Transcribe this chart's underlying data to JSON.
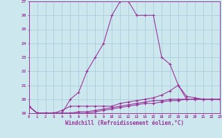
{
  "xlabel": "Windchill (Refroidissement éolien,°C)",
  "bg_color": "#cce8ee",
  "line_color": "#993399",
  "grid_color": "#aaccdd",
  "hours": [
    0,
    1,
    2,
    3,
    4,
    5,
    6,
    7,
    8,
    9,
    10,
    11,
    12,
    13,
    14,
    15,
    16,
    17,
    18,
    19,
    20,
    21,
    22,
    23
  ],
  "temp": [
    19.5,
    19.0,
    19.0,
    19.0,
    19.0,
    20.0,
    20.5,
    22.0,
    23.0,
    24.0,
    26.0,
    27.0,
    27.0,
    26.0,
    26.0,
    26.0,
    23.0,
    22.5,
    21.0,
    20.0,
    20.0,
    20.0,
    20.0,
    20.0
  ],
  "windchill3": [
    19.5,
    19.0,
    19.0,
    19.0,
    19.2,
    19.5,
    19.5,
    19.5,
    19.5,
    19.5,
    19.5,
    19.7,
    19.8,
    19.9,
    20.0,
    20.1,
    20.3,
    20.6,
    21.0,
    20.2,
    20.1,
    20.0,
    20.0,
    20.0
  ],
  "windchill2": [
    19.5,
    19.0,
    19.0,
    19.0,
    19.0,
    19.0,
    19.1,
    19.1,
    19.2,
    19.3,
    19.4,
    19.5,
    19.6,
    19.7,
    19.8,
    19.9,
    19.9,
    20.0,
    20.0,
    20.0,
    20.0,
    20.0,
    20.0,
    20.0
  ],
  "windchill1": [
    19.5,
    19.0,
    19.0,
    19.0,
    19.0,
    19.0,
    19.0,
    19.0,
    19.1,
    19.2,
    19.3,
    19.4,
    19.5,
    19.6,
    19.7,
    19.7,
    19.8,
    19.9,
    19.9,
    20.0,
    20.0,
    20.0,
    20.0,
    20.0
  ],
  "ylim": [
    19,
    27
  ],
  "xlim": [
    0,
    23
  ],
  "yticks": [
    19,
    20,
    21,
    22,
    23,
    24,
    25,
    26,
    27
  ]
}
